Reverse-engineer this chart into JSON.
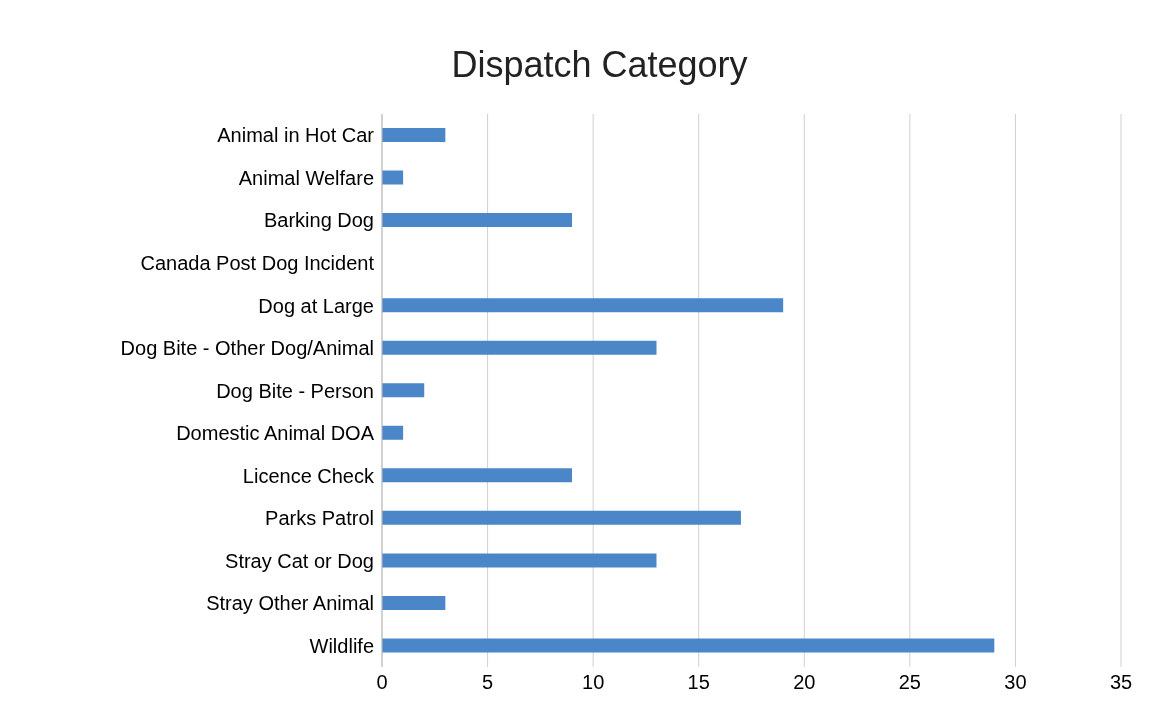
{
  "chart_data": {
    "type": "bar",
    "orientation": "horizontal",
    "title": "Dispatch Category",
    "categories": [
      "Animal in Hot Car",
      "Animal Welfare",
      "Barking Dog",
      "Canada Post Dog Incident",
      "Dog at Large",
      "Dog Bite - Other Dog/Animal",
      "Dog Bite - Person",
      "Domestic Animal DOA",
      "Licence Check",
      "Parks Patrol",
      "Stray Cat or Dog",
      "Stray Other Animal",
      "Wildlife"
    ],
    "values": [
      3,
      1,
      9,
      0,
      19,
      13,
      2,
      1,
      9,
      17,
      13,
      3,
      29
    ],
    "color": "#4a86c8",
    "xlim": [
      0,
      35
    ],
    "xticks": [
      0,
      5,
      10,
      15,
      20,
      25,
      30,
      35
    ],
    "grid": "x"
  }
}
